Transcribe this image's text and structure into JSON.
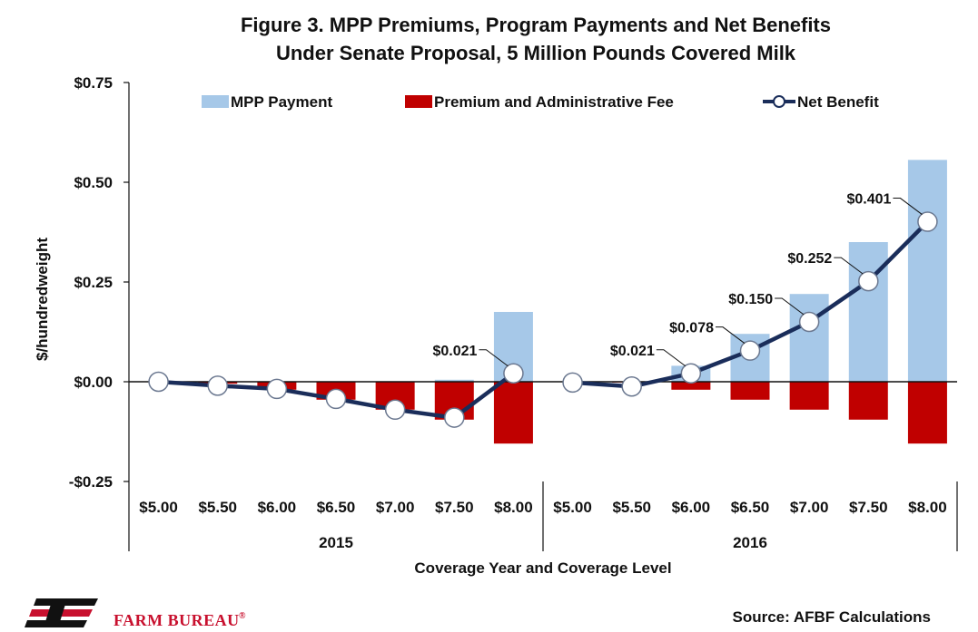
{
  "chart_data": {
    "type": "bar",
    "title": [
      "Figure 3. MPP Premiums, Program Payments and Net Benefits",
      "Under Senate Proposal, 5 Million Pounds Covered Milk"
    ],
    "ylabel": "$/hundredweight",
    "xlabel": "Coverage Year and Coverage Level",
    "ylim": [
      -0.25,
      0.75
    ],
    "yticks": [
      {
        "value": 0.75,
        "label": "$0.75"
      },
      {
        "value": 0.5,
        "label": "$0.50"
      },
      {
        "value": 0.25,
        "label": "$0.25"
      },
      {
        "value": 0.0,
        "label": "$0.00"
      },
      {
        "value": -0.25,
        "label": "-$0.25"
      }
    ],
    "groups": [
      {
        "label": "2015",
        "categories": [
          "$5.00",
          "$5.50",
          "$6.00",
          "$6.50",
          "$7.00",
          "$7.50",
          "$8.00"
        ]
      },
      {
        "label": "2016",
        "categories": [
          "$5.00",
          "$5.50",
          "$6.00",
          "$6.50",
          "$7.00",
          "$7.50",
          "$8.00"
        ]
      }
    ],
    "legend_position": "top",
    "grid": false,
    "series": [
      {
        "name": "MPP Payment",
        "kind": "bar",
        "color": "#a6c8e8",
        "values": [
          0.0,
          0.0,
          0.0,
          0.0,
          0.0,
          0.005,
          0.175,
          0.0,
          0.0,
          0.04,
          0.12,
          0.22,
          0.35,
          0.556
        ]
      },
      {
        "name": "Premium and Administrative Fee",
        "kind": "bar",
        "color": "#c00000",
        "values": [
          0.0,
          -0.005,
          -0.02,
          -0.045,
          -0.07,
          -0.095,
          -0.155,
          0.0,
          -0.002,
          -0.02,
          -0.045,
          -0.07,
          -0.095,
          -0.155
        ]
      },
      {
        "name": "Net Benefit",
        "kind": "line",
        "color": "#1a2d5a",
        "values": [
          0.0,
          -0.01,
          -0.018,
          -0.043,
          -0.07,
          -0.09,
          0.021,
          -0.002,
          -0.012,
          0.021,
          0.078,
          0.15,
          0.252,
          0.401
        ]
      }
    ],
    "data_labels": [
      {
        "index": 6,
        "text": "$0.021"
      },
      {
        "index": 9,
        "text": "$0.021"
      },
      {
        "index": 10,
        "text": "$0.078"
      },
      {
        "index": 11,
        "text": "$0.150"
      },
      {
        "index": 12,
        "text": "$0.252"
      },
      {
        "index": 13,
        "text": "$0.401"
      }
    ]
  },
  "source": "Source: AFBF Calculations",
  "brand": {
    "name": "FARM BUREAU",
    "mark": "®",
    "logo_color": "#c8102e"
  }
}
